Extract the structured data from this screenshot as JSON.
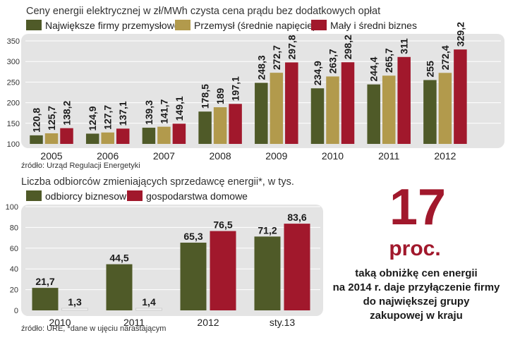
{
  "colors": {
    "green": "#4f5a28",
    "gold": "#b29a4c",
    "red": "#a1182c",
    "panel": "#e4e4e4",
    "bar2012bg": "#ececec"
  },
  "chart_data": [
    {
      "type": "bar",
      "title": "Ceny energii elektrycznej w zł/MWh czysta cena prądu bez dodatkowych opłat",
      "categories": [
        "2005",
        "2006",
        "2007",
        "2008",
        "2009",
        "2010",
        "2011",
        "2012"
      ],
      "series": [
        {
          "name": "Największe firmy przemysłowe",
          "color": "#4f5a28",
          "values": [
            120.8,
            124.9,
            139.3,
            178.5,
            248.3,
            234.9,
            244.4,
            255
          ],
          "labels": [
            "120,8",
            "124,9",
            "139,3",
            "178,5",
            "248,3",
            "234,9",
            "244,4",
            "255"
          ]
        },
        {
          "name": "Przemysł (średnie napięcie)",
          "color": "#b29a4c",
          "values": [
            125.7,
            127.7,
            141.7,
            189,
            272.7,
            263.7,
            265.7,
            272.4
          ],
          "labels": [
            "125,7",
            "127,7",
            "141,7",
            "189",
            "272,7",
            "263,7",
            "265,7",
            "272,4"
          ]
        },
        {
          "name": "Mały i średni biznes",
          "color": "#a1182c",
          "values": [
            138.2,
            137.1,
            149.1,
            197.1,
            297.8,
            298.2,
            311,
            329.2
          ],
          "labels": [
            "138,2",
            "137,1",
            "149,1",
            "197,1",
            "297,8",
            "298,2",
            "311",
            "329,2"
          ]
        }
      ],
      "yticks": [
        "100",
        "150",
        "200",
        "250",
        "300",
        "350"
      ],
      "ylim": [
        100,
        350
      ],
      "source": "źródło: Urząd Regulacji Energetyki"
    },
    {
      "type": "bar",
      "title": "Liczba odbiorców zmieniających sprzedawcę energii*, w tys.",
      "categories": [
        "2010",
        "2011",
        "2012",
        "sty.13"
      ],
      "series": [
        {
          "name": "odbiorcy biznesowi",
          "color": "#4f5a28",
          "values": [
            21.7,
            44.5,
            65.3,
            71.2
          ],
          "labels": [
            "21,7",
            "44,5",
            "65,3",
            "71,2"
          ]
        },
        {
          "name": "gospodarstwa domowe",
          "color": "#a1182c",
          "values": [
            1.3,
            1.4,
            76.5,
            83.6
          ],
          "labels": [
            "1,3",
            "1,4",
            "76,5",
            "83,6"
          ]
        }
      ],
      "yticks": [
        "0",
        "20",
        "40",
        "60",
        "80",
        "100"
      ],
      "ylim": [
        0,
        100
      ],
      "source": "źródło: URE, *dane w ujęciu narastającym"
    }
  ],
  "callout": {
    "number": "17",
    "unit": "proc.",
    "lines": [
      "taką obniżkę cen energii",
      "na 2014 r. daje przyłączenie firmy",
      "do największej grupy",
      "zakupowej w kraju"
    ]
  }
}
